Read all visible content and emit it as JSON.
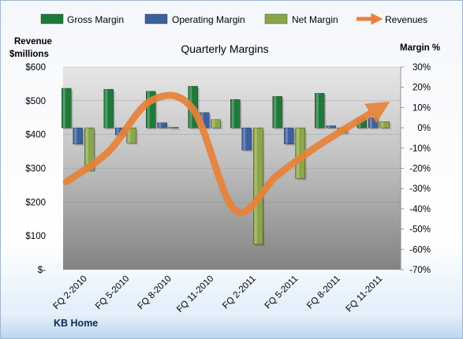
{
  "chart_data": {
    "type": "bar",
    "title": "Quarterly Margins",
    "footer": "KB Home",
    "categories": [
      "FQ 2-2010",
      "FQ 5-2010",
      "FQ 8-2010",
      "FQ 11-2010",
      "FQ 2-2011",
      "FQ 5-2011",
      "FQ 8-2011",
      "FQ 11-2011"
    ],
    "y_left": {
      "label_line1": "Revenue",
      "label_line2": "$millions",
      "ylim": [
        0,
        600
      ],
      "ticks": [
        "$-",
        "$100",
        "$200",
        "$300",
        "$400",
        "$500",
        "$600"
      ]
    },
    "y_right": {
      "label": "Margin %",
      "ylim": [
        -70,
        30
      ],
      "ticks": [
        "-70%",
        "-60%",
        "-50%",
        "-40%",
        "-30%",
        "-20%",
        "-10%",
        "0%",
        "10%",
        "20%",
        "30%"
      ]
    },
    "series": [
      {
        "name": "Gross Margin",
        "axis": "right",
        "color": "#1f7a3a",
        "values": [
          19.5,
          19,
          18,
          20.5,
          14,
          15.5,
          17,
          5
        ]
      },
      {
        "name": "Operating Margin",
        "axis": "right",
        "color": "#3d5f9e",
        "values": [
          -8,
          -3.5,
          2.5,
          7.5,
          -11,
          -8,
          1,
          5
        ]
      },
      {
        "name": "Net Margin",
        "axis": "right",
        "color": "#8aa646",
        "values": [
          -21,
          -7.5,
          0.3,
          4,
          -57.5,
          -25,
          -2.5,
          3
        ]
      },
      {
        "name": "Revenues",
        "axis": "left",
        "color": "#e8823a",
        "type": "line",
        "values": [
          260,
          350,
          500,
          475,
          175,
          280,
          370,
          480
        ]
      }
    ],
    "grid": true,
    "legend_position": "top"
  }
}
